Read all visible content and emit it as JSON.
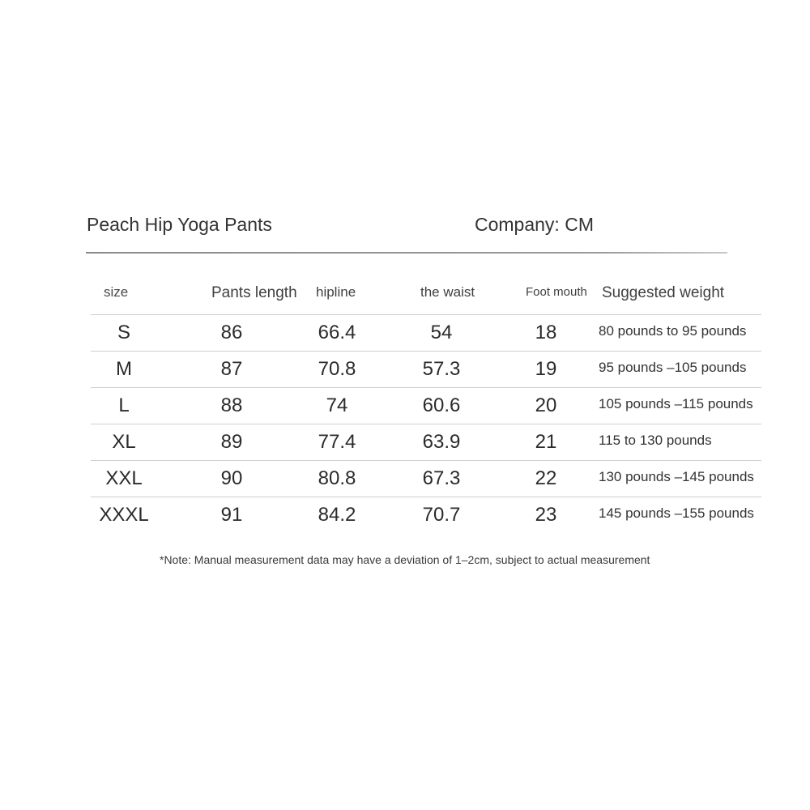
{
  "header": {
    "title": "Peach Hip Yoga Pants",
    "company": "Company: CM"
  },
  "table": {
    "columns": [
      "size",
      "Pants length",
      "hipline",
      "the waist",
      "Foot mouth",
      "Suggested weight"
    ],
    "rows": [
      {
        "size": "S",
        "length": "86",
        "hip": "66.4",
        "waist": "54",
        "foot": "18",
        "weight": "80 pounds to 95 pounds"
      },
      {
        "size": "M",
        "length": "87",
        "hip": "70.8",
        "waist": "57.3",
        "foot": "19",
        "weight": "95 pounds –105 pounds"
      },
      {
        "size": "L",
        "length": "88",
        "hip": "74",
        "waist": "60.6",
        "foot": "20",
        "weight": "105 pounds –115 pounds"
      },
      {
        "size": "XL",
        "length": "89",
        "hip": "77.4",
        "waist": "63.9",
        "foot": "21",
        "weight": "115 to 130 pounds"
      },
      {
        "size": "XXL",
        "length": "90",
        "hip": "80.8",
        "waist": "67.3",
        "foot": "22",
        "weight": "130 pounds –145 pounds"
      },
      {
        "size": "XXXL",
        "length": "91",
        "hip": "84.2",
        "waist": "70.7",
        "foot": "23",
        "weight": "145 pounds –155 pounds"
      }
    ]
  },
  "note": "*Note: Manual measurement data may have a deviation of 1–2cm, subject to actual measurement",
  "colors": {
    "background": "#ffffff",
    "text": "#2b2b2b",
    "rule": "#cfcfcf"
  }
}
